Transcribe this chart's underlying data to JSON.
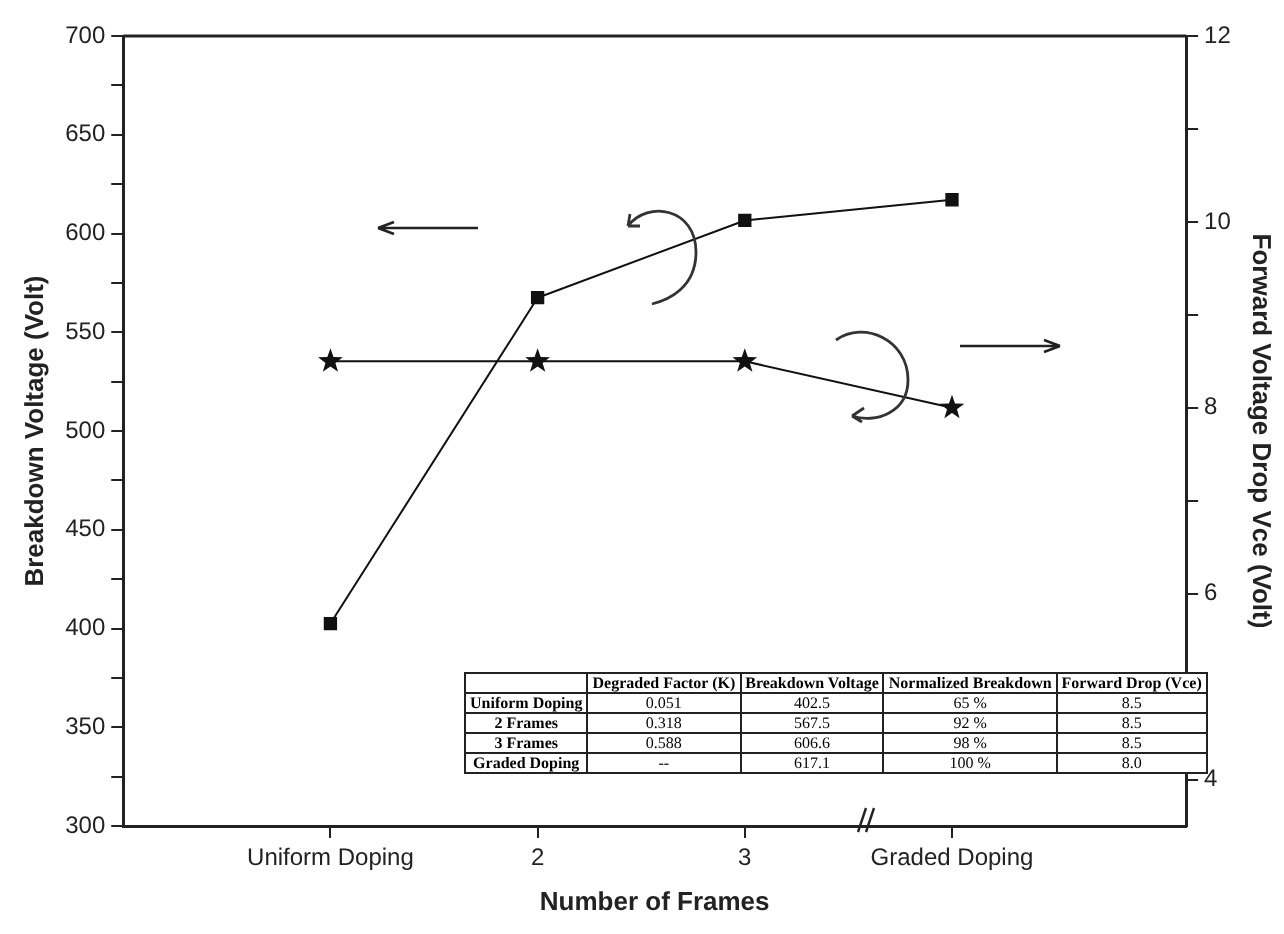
{
  "chart_data": {
    "type": "line",
    "xlabel": "Number of Frames",
    "ylabel": "Breakdown Voltage (Volt)",
    "y2label": "Forward Voltage Drop Vce (Volt)",
    "categories": [
      "Uniform Doping",
      "2",
      "3",
      "Graded Doping"
    ],
    "series": [
      {
        "color": "#111111",
        "marker": "square",
        "values": [
          402.5,
          567.5,
          606.6,
          617.1
        ]
      },
      {
        "color": "#111111",
        "marker": "star",
        "axis": "y2",
        "values": [
          8.5,
          8.5,
          8.5,
          8.0
        ]
      }
    ],
    "ylim": [
      300,
      700
    ],
    "yticks": [
      300,
      {
        "value": 325,
        "label": null
      },
      350,
      {
        "value": 375,
        "label": null
      },
      400,
      {
        "value": 425,
        "label": null
      },
      450,
      {
        "value": 475,
        "label": null
      },
      500,
      {
        "value": 525,
        "label": null
      },
      550,
      {
        "value": 575,
        "label": null
      },
      600,
      {
        "value": 625,
        "label": null
      },
      650,
      {
        "value": 675,
        "label": null
      },
      700
    ],
    "y2lim": [
      3.5,
      12
    ],
    "y2ticks": [
      4,
      {
        "value": 5,
        "label": null
      },
      6,
      {
        "value": 7,
        "label": null
      },
      8,
      {
        "value": 9,
        "label": null
      },
      10,
      {
        "value": 11,
        "label": null
      },
      12
    ],
    "grid": false,
    "legend": false,
    "line_style": "solid",
    "annotations": [
      "Degraded Factor (K)",
      "Breakdown Voltage",
      "Normalized Breakdown",
      "Forward Drop (Vce)",
      "Uniform Doping",
      "0.051",
      "402.5",
      "65 %",
      "8.5",
      "2 Frames",
      "0.318",
      "567.5",
      "92 %",
      "8.5",
      "3 Frames",
      "0.588",
      "606.6",
      "98 %",
      "8.5",
      "Graded Doping",
      "--",
      "617.1",
      "100 %",
      "8.0"
    ]
  }
}
